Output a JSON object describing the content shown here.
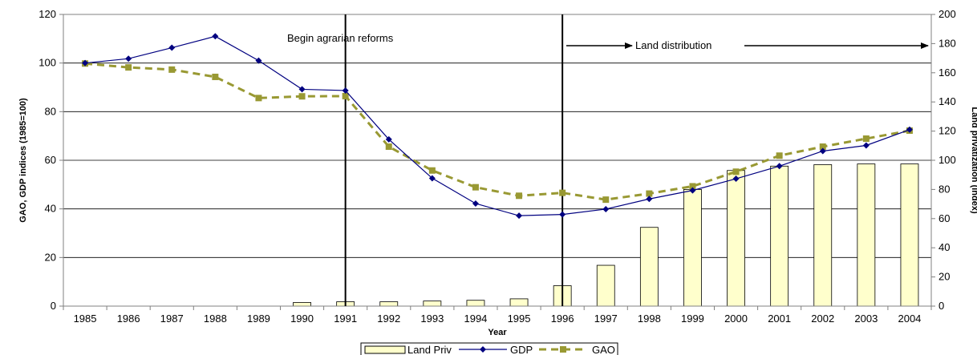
{
  "chart_data": {
    "type": "bar",
    "title": "",
    "xlabel": "Year",
    "ylabel_left": "GAO, GDP indices (1985=100)",
    "ylabel_right": "Land privatization (index)",
    "categories": [
      "1985",
      "1986",
      "1987",
      "1988",
      "1989",
      "1990",
      "1991",
      "1992",
      "1993",
      "1994",
      "1995",
      "1996",
      "1997",
      "1998",
      "1999",
      "2000",
      "2001",
      "2002",
      "2003",
      "2004"
    ],
    "ylim_left": [
      0,
      120
    ],
    "ylim_right": [
      0,
      200
    ],
    "yticks_left": [
      "0",
      "20",
      "40",
      "60",
      "80",
      "100",
      "120"
    ],
    "yticks_right": [
      "0",
      "20",
      "40",
      "60",
      "80",
      "100",
      "120",
      "140",
      "160",
      "180",
      "200"
    ],
    "grid": true,
    "legend_position": "bottom",
    "series": [
      {
        "name": "Land Priv",
        "type": "bar",
        "axis": "right",
        "color": "#ffffcc",
        "values": [
          0,
          0,
          0,
          0,
          0,
          2.5,
          3,
          3,
          3.5,
          4,
          5,
          14,
          28,
          54,
          80,
          93,
          96,
          97,
          97.5,
          97.5
        ]
      },
      {
        "name": "GDP",
        "type": "line",
        "axis": "left",
        "color": "#000080",
        "values": [
          100,
          101.8,
          106.3,
          111,
          101,
          89.2,
          88.7,
          68.6,
          52.6,
          42.2,
          37.2,
          37.7,
          39.9,
          44.1,
          47.6,
          52.4,
          57.6,
          63.8,
          66.1,
          72.6
        ]
      },
      {
        "name": "GAO",
        "type": "line",
        "axis": "left",
        "color": "#999933",
        "values": [
          99.8,
          98.2,
          97.3,
          94.3,
          85.6,
          86.3,
          86.4,
          65.6,
          55.8,
          48.9,
          45.4,
          46.6,
          43.8,
          46.3,
          49.3,
          55.3,
          61.9,
          65.6,
          68.9,
          72.2
        ]
      }
    ],
    "annotations": {
      "reforms": {
        "text": "Begin agrarian reforms",
        "year": "1991"
      },
      "distribution": {
        "text": "Land distribution",
        "year": "1996"
      }
    }
  }
}
